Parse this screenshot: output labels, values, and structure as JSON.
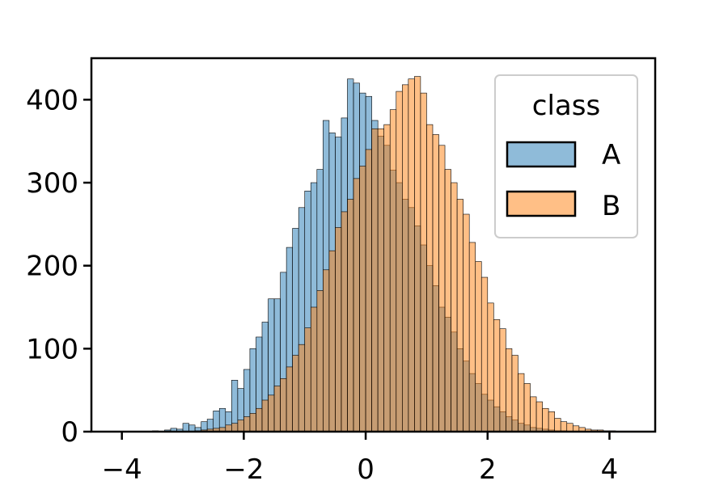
{
  "chart_data": {
    "type": "histogram",
    "title": "",
    "xlabel": "",
    "ylabel": "",
    "xlim": [
      -4.5,
      4.75
    ],
    "ylim": [
      0,
      450
    ],
    "bin_width": 0.1,
    "x_ticks": [
      -4,
      -2,
      0,
      2,
      4
    ],
    "x_tick_labels": [
      "−4",
      "−2",
      "0",
      "2",
      "4"
    ],
    "y_ticks": [
      0,
      100,
      200,
      300,
      400
    ],
    "y_tick_labels": [
      "0",
      "100",
      "200",
      "300",
      "400"
    ],
    "grid": false,
    "legend": {
      "title": "class",
      "placement": "top-right"
    },
    "series": [
      {
        "name": "A",
        "color": "#1f77b4",
        "bin_start": -3.5,
        "counts": [
          1,
          0,
          2,
          4,
          3,
          10,
          8,
          5,
          12,
          15,
          25,
          28,
          24,
          62,
          52,
          75,
          100,
          114,
          132,
          160,
          160,
          192,
          222,
          245,
          270,
          290,
          300,
          316,
          375,
          360,
          355,
          378,
          425,
          420,
          408,
          404,
          375,
          356,
          345,
          315,
          300,
          280,
          270,
          248,
          225,
          200,
          176,
          150,
          138,
          120,
          100,
          85,
          70,
          58,
          45,
          38,
          30,
          24,
          18,
          14,
          10,
          8,
          5,
          4,
          3,
          2,
          1,
          1
        ]
      },
      {
        "name": "B",
        "color": "#ff7f0e",
        "bin_start": -3.0,
        "counts": [
          0,
          0,
          1,
          2,
          3,
          4,
          5,
          8,
          10,
          14,
          18,
          22,
          28,
          38,
          44,
          55,
          64,
          78,
          92,
          105,
          125,
          150,
          170,
          195,
          218,
          246,
          265,
          280,
          305,
          320,
          340,
          365,
          365,
          370,
          388,
          410,
          418,
          425,
          428,
          408,
          370,
          358,
          345,
          316,
          300,
          280,
          262,
          228,
          205,
          186,
          155,
          135,
          124,
          100,
          92,
          70,
          58,
          42,
          36,
          28,
          24,
          16,
          12,
          10,
          7,
          5,
          3,
          2,
          2,
          1,
          1,
          0,
          0
        ]
      }
    ]
  }
}
